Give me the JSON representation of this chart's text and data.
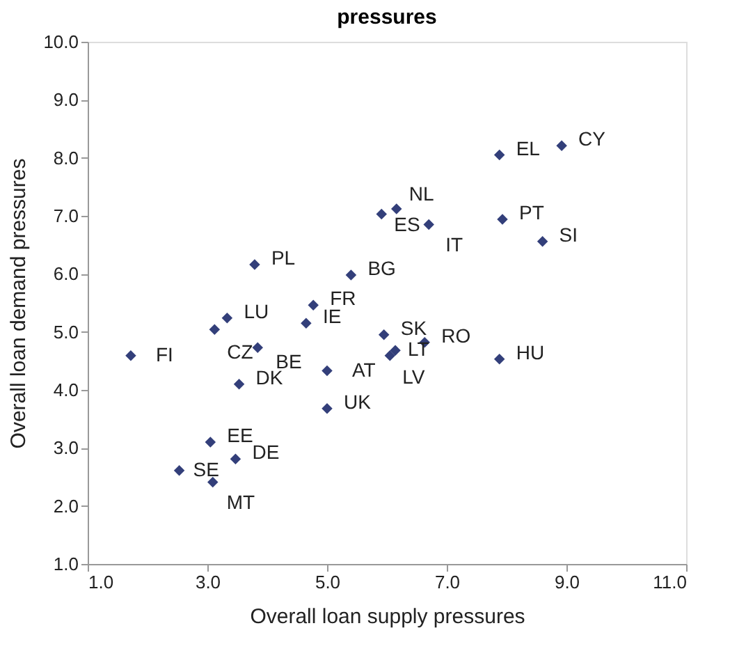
{
  "chart_data": {
    "type": "scatter",
    "title": "pressures",
    "xlabel": "Overall loan supply pressures",
    "ylabel": "Overall loan demand pressures",
    "x": [
      8.92,
      7.88,
      6.16,
      5.91,
      6.7,
      7.93,
      8.6,
      3.79,
      5.4,
      4.77,
      3.33,
      3.12,
      3.84,
      4.65,
      5.95,
      6.63,
      6.14,
      6.05,
      7.88,
      1.72,
      5.0,
      3.53,
      5.0,
      3.05,
      3.47,
      2.53,
      3.09
    ],
    "values": [
      8.21,
      8.05,
      7.12,
      7.03,
      6.85,
      6.94,
      6.56,
      6.16,
      5.98,
      5.46,
      5.24,
      5.04,
      4.73,
      5.15,
      4.95,
      4.82,
      4.68,
      4.59,
      4.53,
      4.59,
      4.33,
      4.1,
      3.68,
      3.1,
      2.81,
      2.61,
      2.41
    ],
    "color": "#333f7a",
    "marker": "diamond",
    "grid": false,
    "xlim": [
      1.0,
      11.0
    ],
    "ylim": [
      1.0,
      10.0
    ],
    "xticks": [
      {
        "value": 1,
        "label": "1.0"
      },
      {
        "value": 3,
        "label": "3.0"
      },
      {
        "value": 5,
        "label": "5.0"
      },
      {
        "value": 7,
        "label": "7.0"
      },
      {
        "value": 9,
        "label": "9.0"
      },
      {
        "value": 11,
        "label": "11.0"
      }
    ],
    "yticks": [
      {
        "value": 1,
        "label": "1.0"
      },
      {
        "value": 2,
        "label": "2.0"
      },
      {
        "value": 3,
        "label": "3.0"
      },
      {
        "value": 4,
        "label": "4.0"
      },
      {
        "value": 5,
        "label": "5.0"
      },
      {
        "value": 6,
        "label": "6.0"
      },
      {
        "value": 7,
        "label": "7.0"
      },
      {
        "value": 8,
        "label": "8.0"
      },
      {
        "value": 9,
        "label": "9.0"
      },
      {
        "value": 10,
        "label": "10.0"
      }
    ],
    "annotations": [
      {
        "text": "CY",
        "x": 8.92,
        "y": 8.21
      },
      {
        "text": "EL",
        "x": 7.88,
        "y": 8.05
      },
      {
        "text": "NL",
        "x": 6.16,
        "y": 7.12
      },
      {
        "text": "ES",
        "x": 5.91,
        "y": 7.03
      },
      {
        "text": "IT",
        "x": 6.7,
        "y": 6.85
      },
      {
        "text": "PT",
        "x": 7.93,
        "y": 6.94
      },
      {
        "text": "SI",
        "x": 8.6,
        "y": 6.56
      },
      {
        "text": "PL",
        "x": 3.79,
        "y": 6.16
      },
      {
        "text": "BG",
        "x": 5.4,
        "y": 5.98
      },
      {
        "text": "FR",
        "x": 4.77,
        "y": 5.46
      },
      {
        "text": "LU",
        "x": 3.33,
        "y": 5.24
      },
      {
        "text": "CZ",
        "x": 3.12,
        "y": 5.04
      },
      {
        "text": "BE",
        "x": 3.84,
        "y": 4.73
      },
      {
        "text": "IE",
        "x": 4.65,
        "y": 5.15
      },
      {
        "text": "SK",
        "x": 5.95,
        "y": 4.95
      },
      {
        "text": "RO",
        "x": 6.63,
        "y": 4.82
      },
      {
        "text": "LT",
        "x": 6.14,
        "y": 4.68
      },
      {
        "text": "LV",
        "x": 6.05,
        "y": 4.59
      },
      {
        "text": "HU",
        "x": 7.88,
        "y": 4.53
      },
      {
        "text": "FI",
        "x": 1.72,
        "y": 4.59
      },
      {
        "text": "AT",
        "x": 5.0,
        "y": 4.33
      },
      {
        "text": "DK",
        "x": 3.53,
        "y": 4.1
      },
      {
        "text": "UK",
        "x": 5.0,
        "y": 3.68
      },
      {
        "text": "EE",
        "x": 3.05,
        "y": 3.1
      },
      {
        "text": "DE",
        "x": 3.47,
        "y": 2.81
      },
      {
        "text": "SE",
        "x": 2.53,
        "y": 2.61
      },
      {
        "text": "MT",
        "x": 3.09,
        "y": 2.41
      }
    ]
  }
}
